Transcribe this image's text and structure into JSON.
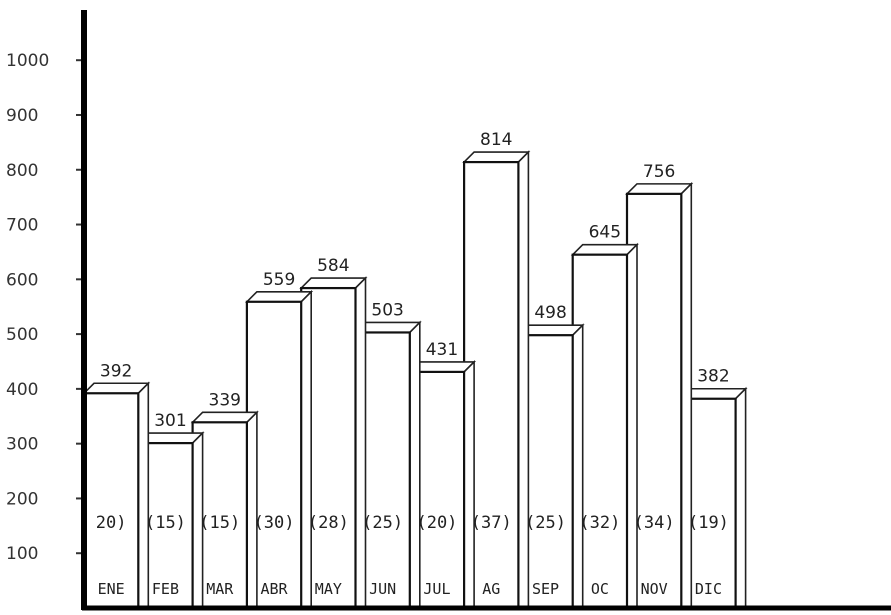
{
  "chart_data": {
    "type": "bar",
    "title": "",
    "xlabel": "",
    "ylabel": "",
    "ylim": [
      0,
      1000
    ],
    "yticks": [
      {
        "value": 100,
        "label": "100"
      },
      {
        "value": 200,
        "label": "200"
      },
      {
        "value": 300,
        "label": "300"
      },
      {
        "value": 400,
        "label": "400"
      },
      {
        "value": 500,
        "label": "500"
      },
      {
        "value": 600,
        "label": "600"
      },
      {
        "value": 700,
        "label": "700"
      },
      {
        "value": 800,
        "label": "800"
      },
      {
        "value": 900,
        "label": "900"
      },
      {
        "value": 1000,
        "label": "1000"
      }
    ],
    "grid": false,
    "categories": [
      "ENE",
      "FEB",
      "MAR",
      "ABR",
      "MAY",
      "JUN",
      "JUL",
      "AG",
      "SEP",
      "OC",
      "NOV",
      "DIC"
    ],
    "values": [
      392,
      301,
      339,
      559,
      584,
      503,
      431,
      814,
      498,
      645,
      756,
      382
    ],
    "value_labels": [
      "392",
      "301",
      "339",
      "559",
      "584",
      "503",
      "431",
      "814",
      "498",
      "645",
      "756",
      "382"
    ],
    "count_labels": [
      "20)",
      "(15)",
      "(15)",
      "(30)",
      "(28)",
      "(25)",
      "(20)",
      "(37)",
      "(25)",
      "(32)",
      "(34)",
      "(19)"
    ]
  }
}
